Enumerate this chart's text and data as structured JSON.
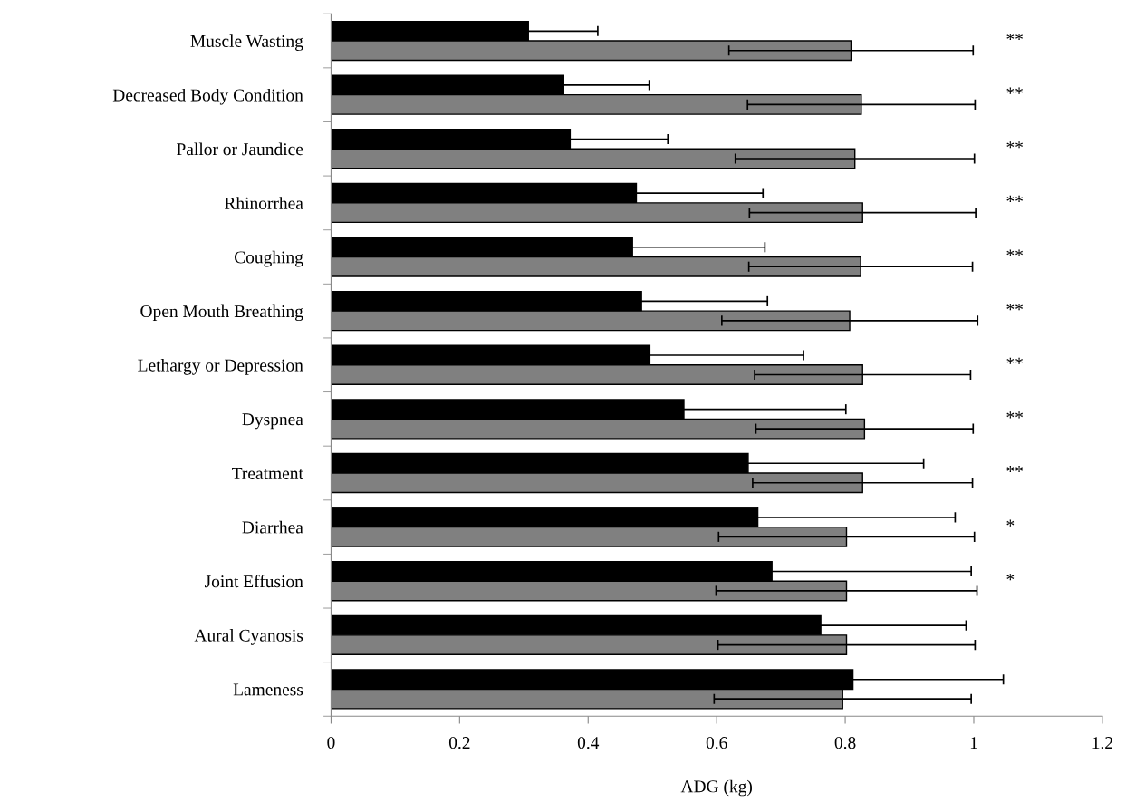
{
  "chart_data": {
    "type": "bar",
    "orientation": "horizontal",
    "xlabel": "ADG (kg)",
    "categories": [
      "Muscle Wasting",
      "Decreased Body Condition",
      "Pallor or Jaundice",
      "Rhinorrhea",
      "Coughing",
      "Open Mouth Breathing",
      "Lethargy or Depression",
      "Dyspnea",
      "Treatment",
      "Diarrhea",
      "Joint Effusion",
      "Aural Cyanosis",
      "Lameness"
    ],
    "series": [
      {
        "color": "#000000",
        "values": [
          0.307,
          0.362,
          0.372,
          0.475,
          0.469,
          0.483,
          0.496,
          0.549,
          0.649,
          0.664,
          0.686,
          0.762,
          0.812
        ],
        "errors": [
          0.108,
          0.133,
          0.152,
          0.197,
          0.206,
          0.196,
          0.239,
          0.252,
          0.273,
          0.307,
          0.31,
          0.226,
          0.234
        ]
      },
      {
        "color": "#808080",
        "values": [
          0.809,
          0.825,
          0.815,
          0.827,
          0.824,
          0.807,
          0.827,
          0.83,
          0.827,
          0.802,
          0.802,
          0.802,
          0.796
        ],
        "errors": [
          0.19,
          0.177,
          0.186,
          0.176,
          0.174,
          0.199,
          0.168,
          0.169,
          0.171,
          0.199,
          0.203,
          0.2,
          0.2
        ]
      }
    ],
    "xlim": [
      0,
      1.2
    ],
    "xticks": [
      0,
      0.2,
      0.4,
      0.6,
      0.8,
      1,
      1.2
    ],
    "grid": false,
    "annotations": [
      "**",
      "**",
      "**",
      "**",
      "**",
      "**",
      "**",
      "**",
      "**",
      "*",
      "*"
    ]
  }
}
